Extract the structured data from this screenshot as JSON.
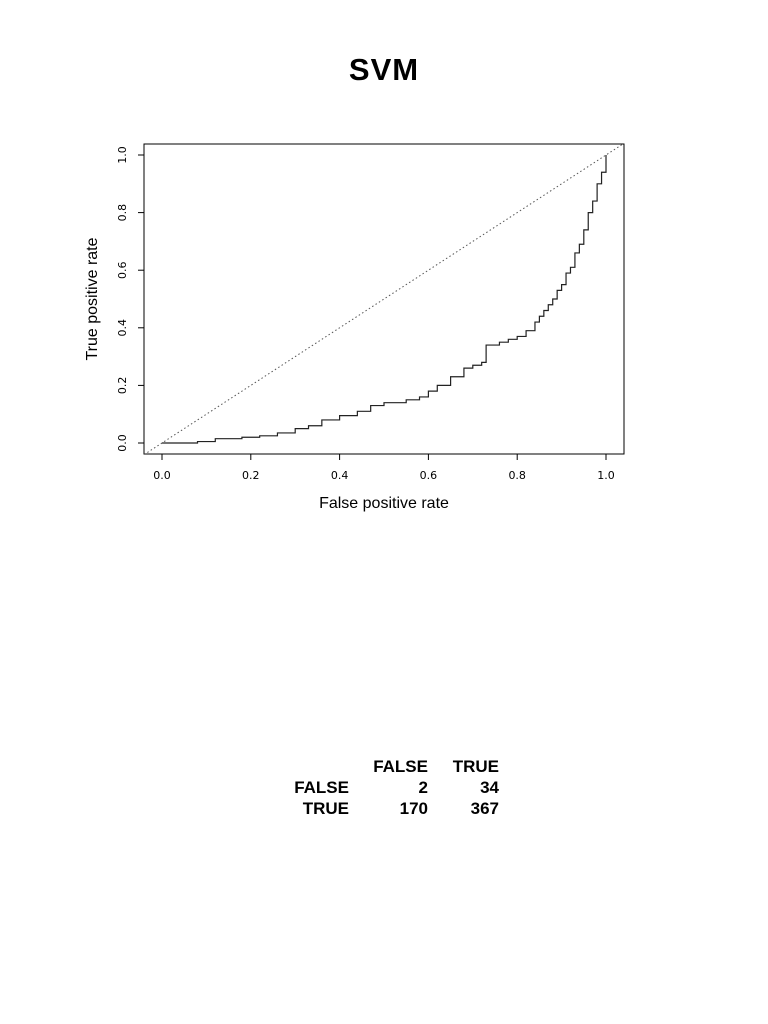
{
  "chart_data": {
    "type": "line",
    "title": "SVM",
    "xlabel": "False positive rate",
    "ylabel": "True positive rate",
    "xlim": [
      0,
      1
    ],
    "ylim": [
      0,
      1
    ],
    "xticks": [
      "0.0",
      "0.2",
      "0.4",
      "0.6",
      "0.8",
      "1.0"
    ],
    "yticks": [
      "0.0",
      "0.2",
      "0.4",
      "0.6",
      "0.8",
      "1.0"
    ],
    "grid": false,
    "legend": "none",
    "series": [
      {
        "style": "solid",
        "x": [
          0,
          0.08,
          0.12,
          0.18,
          0.22,
          0.26,
          0.3,
          0.33,
          0.36,
          0.4,
          0.44,
          0.47,
          0.5,
          0.55,
          0.58,
          0.6,
          0.62,
          0.65,
          0.68,
          0.7,
          0.72,
          0.73,
          0.73,
          0.76,
          0.78,
          0.8,
          0.82,
          0.84,
          0.85,
          0.86,
          0.87,
          0.88,
          0.89,
          0.9,
          0.91,
          0.92,
          0.93,
          0.94,
          0.95,
          0.96,
          0.97,
          0.98,
          0.99,
          1.0,
          1.0
        ],
        "y": [
          0,
          0.005,
          0.015,
          0.02,
          0.025,
          0.035,
          0.05,
          0.06,
          0.08,
          0.095,
          0.11,
          0.13,
          0.14,
          0.15,
          0.16,
          0.18,
          0.2,
          0.23,
          0.26,
          0.27,
          0.28,
          0.3,
          0.34,
          0.35,
          0.36,
          0.37,
          0.39,
          0.42,
          0.44,
          0.46,
          0.48,
          0.5,
          0.53,
          0.55,
          0.59,
          0.61,
          0.66,
          0.69,
          0.74,
          0.8,
          0.84,
          0.9,
          0.94,
          0.97,
          1.0
        ]
      },
      {
        "style": "dotted",
        "x": [
          0,
          1
        ],
        "y": [
          0,
          1
        ]
      }
    ]
  },
  "confusion_table": {
    "columns": [
      "",
      "FALSE",
      "TRUE"
    ],
    "rows": [
      {
        "label": "FALSE",
        "values": [
          "2",
          "34"
        ]
      },
      {
        "label": "TRUE",
        "values": [
          "170",
          "367"
        ]
      }
    ]
  }
}
